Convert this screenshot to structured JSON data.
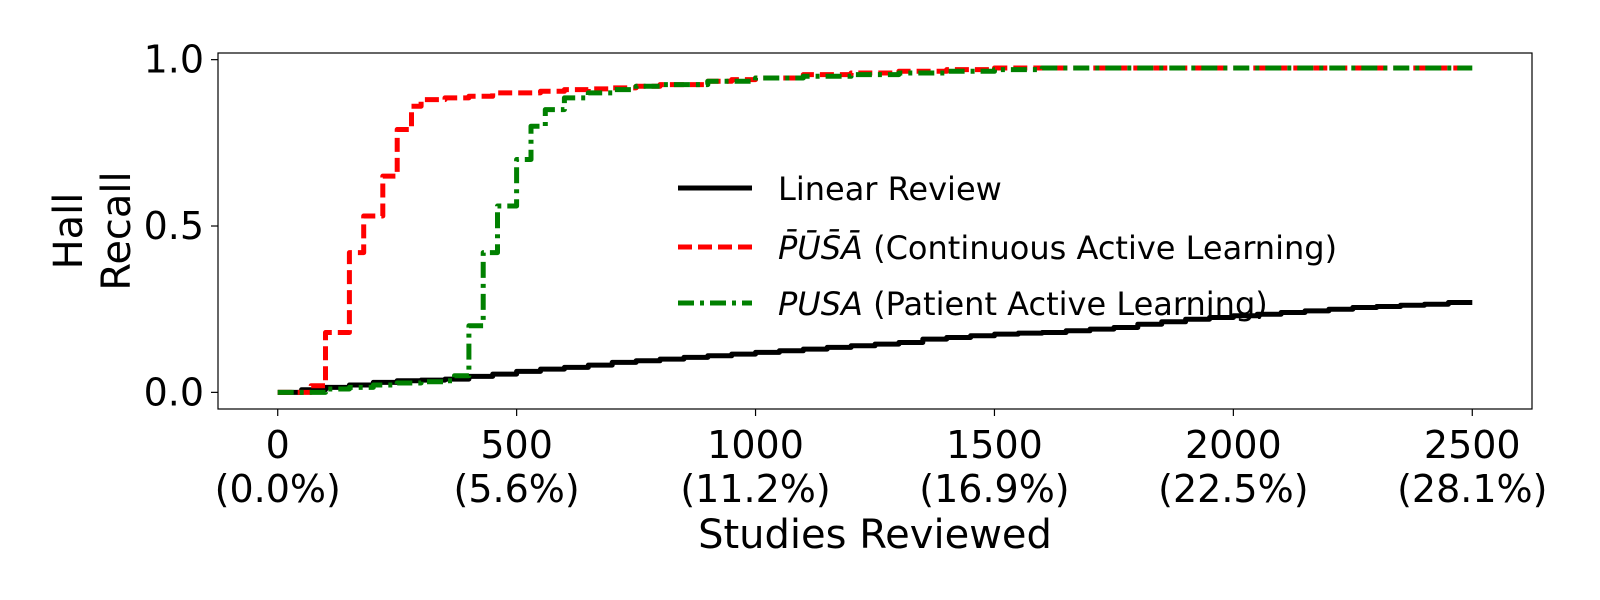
{
  "chart_data": {
    "type": "line",
    "title": "",
    "xlabel": "Studies Reviewed",
    "ylabel": [
      "Hall",
      "Recall"
    ],
    "xlim": [
      -125,
      2625
    ],
    "ylim": [
      -0.05,
      1.02
    ],
    "x_ticks": [
      {
        "value": 0,
        "label": "0",
        "pct": "(0.0%)"
      },
      {
        "value": 500,
        "label": "500",
        "pct": "(5.6%)"
      },
      {
        "value": 1000,
        "label": "1000",
        "pct": "(11.2%)"
      },
      {
        "value": 1500,
        "label": "1500",
        "pct": "(16.9%)"
      },
      {
        "value": 2000,
        "label": "2000",
        "pct": "(22.5%)"
      },
      {
        "value": 2500,
        "label": "2500",
        "pct": "(28.1%)"
      }
    ],
    "y_ticks": [
      {
        "value": 0.0,
        "label": "0.0"
      },
      {
        "value": 0.5,
        "label": "0.5"
      },
      {
        "value": 1.0,
        "label": "1.0"
      }
    ],
    "grid": false,
    "legend_position": "center-right",
    "series": [
      {
        "name": "Linear Review",
        "name_math": "",
        "name_rest": "Linear Review",
        "color": "#000000",
        "dash": "solid",
        "x": [
          0,
          50,
          100,
          150,
          200,
          250,
          300,
          350,
          400,
          450,
          500,
          550,
          600,
          650,
          700,
          750,
          800,
          850,
          900,
          950,
          1000,
          1050,
          1100,
          1150,
          1200,
          1250,
          1300,
          1350,
          1400,
          1450,
          1500,
          1550,
          1600,
          1650,
          1700,
          1750,
          1800,
          1850,
          1900,
          1950,
          2000,
          2050,
          2100,
          2150,
          2200,
          2250,
          2300,
          2350,
          2400,
          2450,
          2500
        ],
        "y": [
          0.0,
          0.008,
          0.015,
          0.022,
          0.03,
          0.035,
          0.037,
          0.04,
          0.048,
          0.055,
          0.063,
          0.07,
          0.075,
          0.082,
          0.09,
          0.095,
          0.1,
          0.105,
          0.11,
          0.115,
          0.12,
          0.125,
          0.13,
          0.135,
          0.14,
          0.145,
          0.15,
          0.16,
          0.165,
          0.17,
          0.175,
          0.178,
          0.18,
          0.185,
          0.19,
          0.195,
          0.205,
          0.212,
          0.22,
          0.225,
          0.23,
          0.235,
          0.24,
          0.245,
          0.25,
          0.255,
          0.258,
          0.262,
          0.265,
          0.27,
          0.27
        ]
      },
      {
        "name": "P̄ŪS̄Ā (Continuous Active Learning)",
        "name_math": "P̄ŪS̄Ā",
        "name_rest": " (Continuous Active Learning)",
        "color": "#ff0000",
        "dash": "dashed",
        "x": [
          0,
          50,
          70,
          100,
          150,
          180,
          220,
          250,
          280,
          300,
          350,
          400,
          450,
          500,
          550,
          600,
          650,
          700,
          750,
          800,
          900,
          950,
          1000,
          1100,
          1200,
          1300,
          1400,
          1500,
          1600,
          1700,
          1800,
          1900,
          2000,
          2100,
          2200,
          2300,
          2400,
          2500
        ],
        "y": [
          0.0,
          0.0,
          0.02,
          0.18,
          0.42,
          0.53,
          0.65,
          0.79,
          0.86,
          0.88,
          0.885,
          0.89,
          0.9,
          0.9,
          0.905,
          0.91,
          0.912,
          0.915,
          0.92,
          0.925,
          0.935,
          0.94,
          0.945,
          0.955,
          0.96,
          0.965,
          0.97,
          0.975,
          0.975,
          0.975,
          0.975,
          0.975,
          0.975,
          0.975,
          0.975,
          0.975,
          0.975,
          0.975
        ]
      },
      {
        "name": "PUSA (Patient Active Learning)",
        "name_math": "PUSA",
        "name_rest": " (Patient Active Learning)",
        "color": "#008000",
        "dash": "dashdot",
        "x": [
          0,
          50,
          100,
          150,
          200,
          250,
          300,
          350,
          370,
          400,
          430,
          460,
          500,
          530,
          560,
          600,
          650,
          700,
          750,
          800,
          900,
          1000,
          1100,
          1200,
          1300,
          1400,
          1500,
          1600,
          1700,
          1800,
          1900,
          2000,
          2100,
          2200,
          2300,
          2400,
          2500
        ],
        "y": [
          0.0,
          0.0,
          0.01,
          0.015,
          0.022,
          0.028,
          0.032,
          0.035,
          0.05,
          0.2,
          0.42,
          0.56,
          0.7,
          0.8,
          0.85,
          0.885,
          0.9,
          0.91,
          0.92,
          0.925,
          0.935,
          0.945,
          0.95,
          0.955,
          0.96,
          0.965,
          0.97,
          0.975,
          0.975,
          0.975,
          0.975,
          0.975,
          0.975,
          0.975,
          0.975,
          0.975,
          0.975
        ]
      }
    ]
  }
}
